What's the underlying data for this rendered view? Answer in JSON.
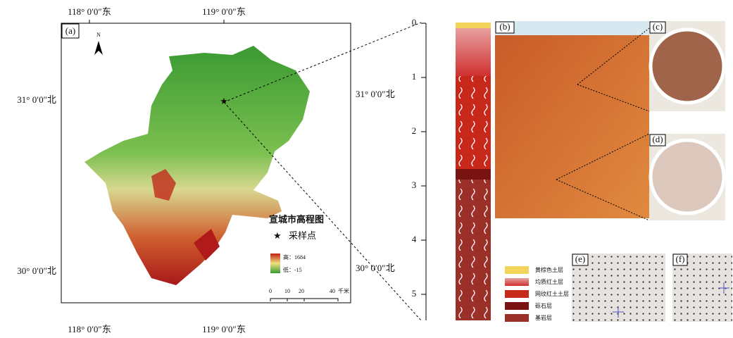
{
  "map": {
    "panel_label": "(a)",
    "top_labels": [
      "118° 0′0″东",
      "119° 0′0″东"
    ],
    "bottom_labels": [
      "118° 0′0″东",
      "119° 0′0″东"
    ],
    "left_labels": [
      "31° 0′0″北",
      "30° 0′0″北"
    ],
    "right_labels": [
      "31° 0′0″北",
      "30° 0′0″北"
    ],
    "north": "N",
    "legend_title": "宣城市高程图",
    "sample_point": "采样点",
    "high": "高：1684",
    "low": "低：-15",
    "scale_labels": [
      "0",
      "10",
      "20",
      "40",
      "千米"
    ]
  },
  "profile": {
    "depth_ticks": [
      0,
      1,
      2,
      3,
      4,
      5
    ],
    "legend": [
      "黄棕色土层",
      "均质红土层",
      "网纹红土土层",
      "砾石层",
      "基岩层"
    ]
  },
  "photos": {
    "labels": [
      "(b)",
      "(c)",
      "(d)",
      "(e)",
      "(f)"
    ]
  }
}
